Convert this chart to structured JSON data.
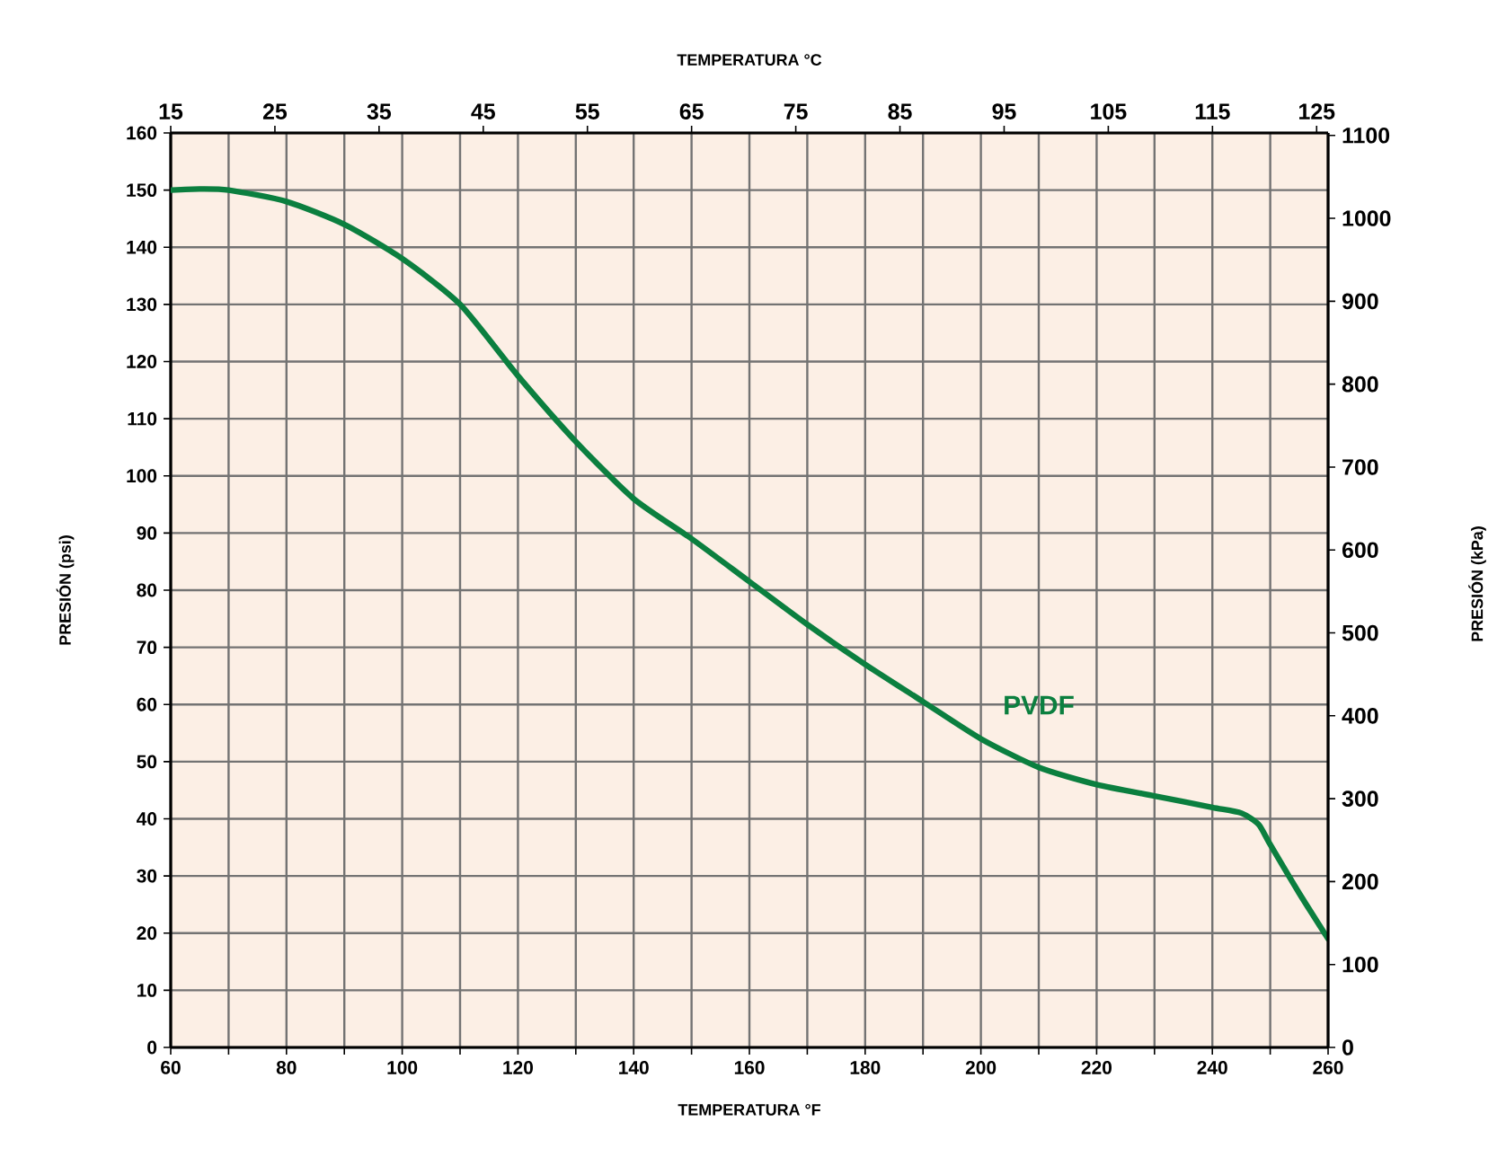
{
  "chart_data": {
    "type": "line",
    "x2label": "TEMPERATURA °C",
    "xlabel": "TEMPERATURA °F",
    "ylabel": "PRESIÓN (psi)",
    "y2label": "PRESIÓN (kPa)",
    "series": [
      {
        "name": "PVDF",
        "color": "#0b7f3f",
        "x": [
          60,
          65,
          70,
          80,
          90,
          100,
          110,
          120,
          130,
          140,
          150,
          160,
          170,
          180,
          190,
          200,
          210,
          220,
          230,
          240,
          245,
          248,
          250,
          255,
          260
        ],
        "values": [
          150,
          150.2,
          150,
          148,
          144,
          138,
          130,
          117.5,
          106,
          96,
          89,
          81.5,
          74,
          67,
          60.5,
          54,
          49,
          46,
          44,
          42,
          41,
          39,
          35.5,
          27,
          19
        ]
      }
    ],
    "xlim": [
      60,
      260
    ],
    "xticks": [
      60,
      {
        "value": 70,
        "label": null
      },
      80,
      {
        "value": 90,
        "label": null
      },
      100,
      {
        "value": 110,
        "label": null
      },
      120,
      {
        "value": 130,
        "label": null
      },
      140,
      {
        "value": 150,
        "label": null
      },
      160,
      {
        "value": 170,
        "label": null
      },
      180,
      {
        "value": 190,
        "label": null
      },
      200,
      {
        "value": 210,
        "label": null
      },
      220,
      {
        "value": 230,
        "label": null
      },
      240,
      {
        "value": 250,
        "label": null
      },
      260
    ],
    "ylim": [
      0,
      160
    ],
    "yticks": [
      0,
      10,
      20,
      30,
      40,
      50,
      60,
      70,
      80,
      90,
      100,
      110,
      120,
      130,
      140,
      150,
      160
    ],
    "x2lim": [
      15,
      126.1
    ],
    "x2ticks": [
      15,
      25,
      35,
      45,
      55,
      65,
      75,
      85,
      95,
      105,
      115,
      125
    ],
    "y2lim": [
      0,
      1103
    ],
    "y2ticks": [
      0,
      100,
      200,
      300,
      400,
      500,
      600,
      700,
      800,
      900,
      1000,
      1100
    ],
    "grid": true,
    "marker": "none",
    "line_style": "solid"
  }
}
